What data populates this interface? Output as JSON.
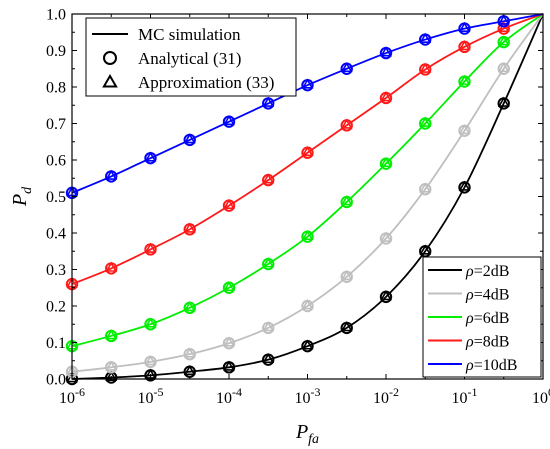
{
  "chart_data": {
    "type": "line",
    "title": "",
    "x_scale": "log",
    "xlim": [
      1e-06,
      1
    ],
    "ylim": [
      0,
      1.0
    ],
    "grid": false,
    "xlabel": {
      "main": "P",
      "sub": "fa"
    },
    "ylabel": {
      "main": "P",
      "sub": "d"
    },
    "x_ticks": [
      {
        "value": 1e-06,
        "base": "10",
        "exp": "-6"
      },
      {
        "value": 1e-05,
        "base": "10",
        "exp": "-5"
      },
      {
        "value": 0.0001,
        "base": "10",
        "exp": "-4"
      },
      {
        "value": 0.001,
        "base": "10",
        "exp": "-3"
      },
      {
        "value": 0.01,
        "base": "10",
        "exp": "-2"
      },
      {
        "value": 0.1,
        "base": "10",
        "exp": "-1"
      },
      {
        "value": 1,
        "base": "10",
        "exp": "0"
      }
    ],
    "y_ticks": [
      "0.0",
      "0.1",
      "0.2",
      "0.3",
      "0.4",
      "0.5",
      "0.6",
      "0.7",
      "0.8",
      "0.9",
      "1.0"
    ],
    "marker_legend": {
      "position": "top-left",
      "entries": [
        {
          "label": "MC simulation",
          "marker": "line"
        },
        {
          "label": "Analytical (31)",
          "marker": "circle"
        },
        {
          "label": "Approximation (33)",
          "marker": "triangle"
        }
      ]
    },
    "series_legend": {
      "position": "bottom-right"
    },
    "x": [
      1e-06,
      3.16e-06,
      1e-05,
      3.16e-05,
      0.0001,
      0.000316,
      0.001,
      0.00316,
      0.01,
      0.0316,
      0.1,
      0.316,
      1
    ],
    "series": [
      {
        "name": "ρ=2dB",
        "symbol": "ρ",
        "label_rest": "=2dB",
        "color": "#000000",
        "values": [
          0.0,
          0.004,
          0.01,
          0.02,
          0.032,
          0.053,
          0.09,
          0.14,
          0.225,
          0.35,
          0.525,
          0.755,
          1.0
        ]
      },
      {
        "name": "ρ=4dB",
        "symbol": "ρ",
        "label_rest": "=4dB",
        "color": "#bfbfbf",
        "values": [
          0.02,
          0.032,
          0.047,
          0.068,
          0.098,
          0.14,
          0.2,
          0.28,
          0.385,
          0.52,
          0.68,
          0.85,
          1.0
        ]
      },
      {
        "name": "ρ=6dB",
        "symbol": "ρ",
        "label_rest": "=6dB",
        "color": "#00ee00",
        "values": [
          0.09,
          0.118,
          0.15,
          0.195,
          0.25,
          0.315,
          0.39,
          0.485,
          0.59,
          0.7,
          0.815,
          0.923,
          1.0
        ]
      },
      {
        "name": "ρ=8dB",
        "symbol": "ρ",
        "label_rest": "=8dB",
        "color": "#ff1a1a",
        "values": [
          0.26,
          0.303,
          0.355,
          0.41,
          0.475,
          0.545,
          0.62,
          0.695,
          0.77,
          0.848,
          0.91,
          0.96,
          1.0
        ]
      },
      {
        "name": "ρ=10dB",
        "symbol": "ρ",
        "label_rest": "=10dB",
        "color": "#0000ff",
        "values": [
          0.51,
          0.555,
          0.605,
          0.655,
          0.705,
          0.755,
          0.805,
          0.85,
          0.893,
          0.93,
          0.96,
          0.98,
          1.0
        ]
      }
    ]
  }
}
